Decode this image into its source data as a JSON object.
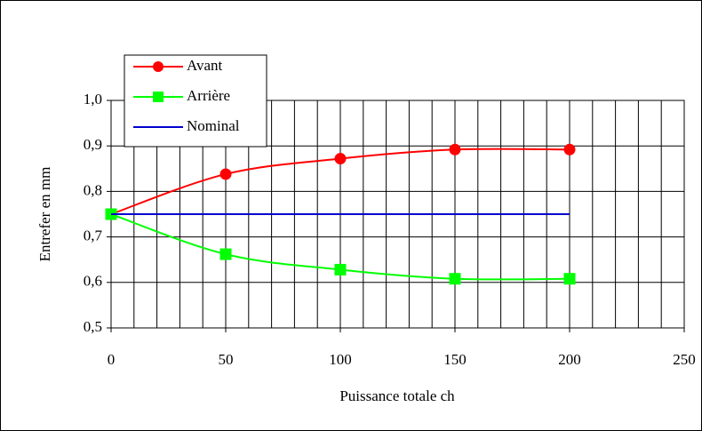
{
  "chart_data": {
    "type": "line",
    "x": [
      0,
      50,
      100,
      150,
      200
    ],
    "series": [
      {
        "name": "Avant",
        "color": "#ff0000",
        "marker": "circle",
        "values": [
          0.75,
          0.838,
          0.872,
          0.892,
          0.892
        ]
      },
      {
        "name": "Arrière",
        "color": "#00ff00",
        "marker": "square",
        "values": [
          0.75,
          0.662,
          0.628,
          0.608,
          0.608
        ]
      },
      {
        "name": "Nominal",
        "color": "#0000cc",
        "values": [
          0.75,
          0.75,
          0.75,
          0.75,
          0.75
        ]
      }
    ],
    "xlabel": "Puissance totale ch",
    "ylabel": "Entrefer en mm",
    "xlim": [
      0,
      250
    ],
    "xticks": [
      0,
      50,
      100,
      150,
      200,
      250
    ],
    "ylim": [
      0.5,
      1.0
    ],
    "yticks": [
      {
        "value": 0.5,
        "label": "0,5"
      },
      {
        "value": 0.6,
        "label": "0,6"
      },
      {
        "value": 0.7,
        "label": "0,7"
      },
      {
        "value": 0.8,
        "label": "0,8"
      },
      {
        "value": 0.9,
        "label": "0,9"
      },
      {
        "value": 1.0,
        "label": "1,0"
      }
    ],
    "grid": true,
    "smooth": true,
    "legend": "top-left"
  }
}
